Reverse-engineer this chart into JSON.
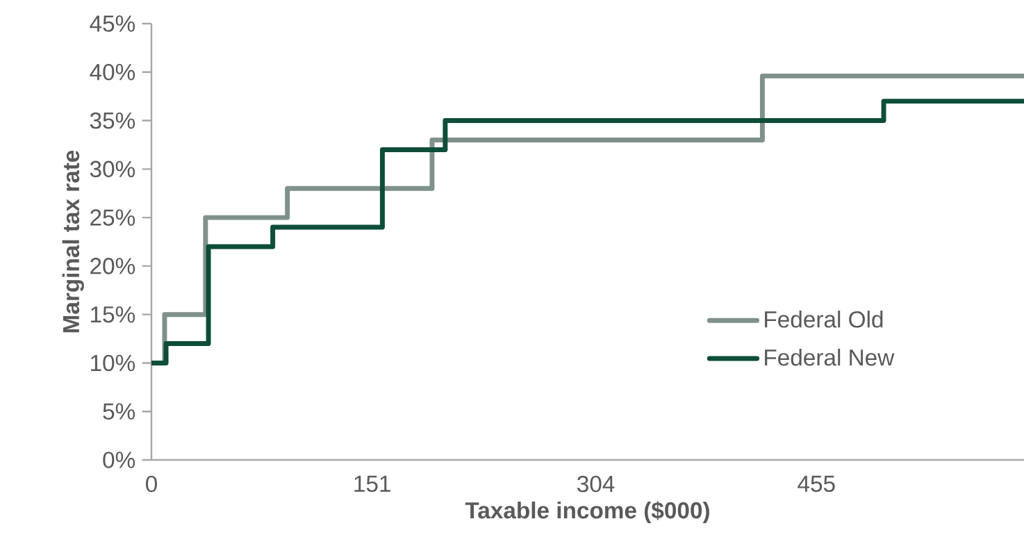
{
  "chart_data": {
    "type": "step",
    "xlabel": "Taxable income ($000)",
    "ylabel": "Marginal tax rate",
    "xlim": [
      0,
      597
    ],
    "xticks": [
      0,
      151,
      304,
      455
    ],
    "ylim": [
      0,
      45
    ],
    "yticks": [
      {
        "value": 0,
        "label": "0%"
      },
      {
        "value": 5,
        "label": "5%"
      },
      {
        "value": 10,
        "label": "10%"
      },
      {
        "value": 15,
        "label": "15%"
      },
      {
        "value": 20,
        "label": "20%"
      },
      {
        "value": 25,
        "label": "25%"
      },
      {
        "value": 30,
        "label": "30%"
      },
      {
        "value": 35,
        "label": "35%"
      },
      {
        "value": 40,
        "label": "40%"
      },
      {
        "value": 45,
        "label": "45%"
      }
    ],
    "grid": false,
    "legend": "bottom right",
    "marker": "none",
    "line_style": "solid",
    "series": [
      {
        "name": "Federal Old",
        "color": "#7f918a",
        "x": [
          0,
          9,
          37,
          93,
          192,
          418,
          597
        ],
        "values": [
          10,
          15,
          25,
          28,
          33,
          39.6,
          39.6
        ]
      },
      {
        "name": "Federal New",
        "color": "#0d4d3a",
        "x": [
          0,
          10,
          39,
          83,
          158,
          201,
          501,
          597
        ],
        "values": [
          10,
          12,
          22,
          24,
          32,
          35,
          37,
          37
        ]
      }
    ]
  }
}
